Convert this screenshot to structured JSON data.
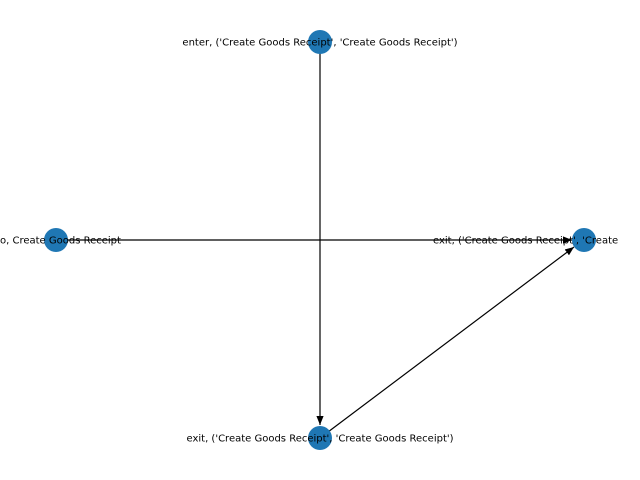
{
  "graph": {
    "node_color": "#1f77b4",
    "edge_color": "#000000",
    "nodes": [
      {
        "id": "top",
        "label": "enter, ('Create Goods Receipt', 'Create Goods Receipt')"
      },
      {
        "id": "left",
        "label": "o, Create Goods Receipt"
      },
      {
        "id": "right",
        "label": "exit, ('Create Goods Receipt', 'Create"
      },
      {
        "id": "bottom",
        "label": "exit, ('Create Goods Receipt', 'Create Goods Receipt')"
      }
    ],
    "edges": [
      {
        "from": "top",
        "to": "bottom"
      },
      {
        "from": "left",
        "to": "right"
      },
      {
        "from": "bottom",
        "to": "right"
      }
    ]
  }
}
